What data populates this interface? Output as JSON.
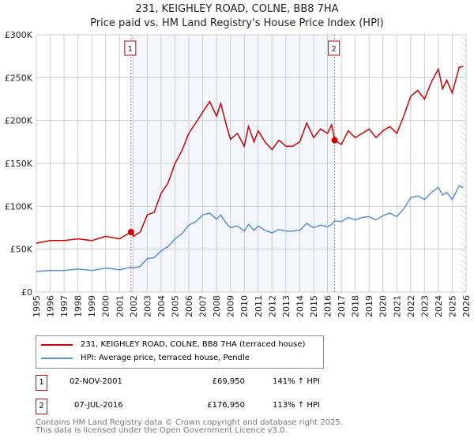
{
  "title": "231, KEIGHLEY ROAD, COLNE, BB8 7HA",
  "subtitle": "Price paid vs. HM Land Registry's House Price Index (HPI)",
  "chart_data": {
    "type": "line",
    "title": "231, KEIGHLEY ROAD, COLNE, BB8 7HA — Price paid vs. HM Land Registry's House Price Index (HPI)",
    "xlim": [
      1995,
      2026
    ],
    "ylim": [
      0,
      300000
    ],
    "x_ticks": [
      "1995",
      "1996",
      "1997",
      "1998",
      "1999",
      "2000",
      "2001",
      "2002",
      "2003",
      "2004",
      "2005",
      "2006",
      "2007",
      "2008",
      "2009",
      "2010",
      "2011",
      "2012",
      "2013",
      "2014",
      "2015",
      "2016",
      "2017",
      "2018",
      "2019",
      "2020",
      "2021",
      "2022",
      "2023",
      "2024",
      "2025",
      "2026"
    ],
    "y_ticks": [
      {
        "v": 0,
        "label": "£0"
      },
      {
        "v": 50000,
        "label": "£50K"
      },
      {
        "v": 100000,
        "label": "£100K"
      },
      {
        "v": 150000,
        "label": "£150K"
      },
      {
        "v": 200000,
        "label": "£200K"
      },
      {
        "v": 250000,
        "label": "£250K"
      },
      {
        "v": 300000,
        "label": "£300K"
      }
    ],
    "grid": true,
    "shaded_range": [
      2001.83,
      2016.52
    ],
    "forecast_hatch_from": 2025.6,
    "x": [
      1995,
      1996,
      1997,
      1998,
      1999,
      2000,
      2001,
      2001.83,
      2002,
      2002.5,
      2003,
      2003.5,
      2004,
      2004.5,
      2005,
      2005.5,
      2006,
      2006.5,
      2007,
      2007.5,
      2008,
      2008.3,
      2008.7,
      2009,
      2009.5,
      2010,
      2010.3,
      2010.7,
      2011,
      2011.5,
      2012,
      2012.5,
      2013,
      2013.5,
      2014,
      2014.5,
      2015,
      2015.5,
      2016,
      2016.3,
      2016.52,
      2017,
      2017.5,
      2018,
      2018.5,
      2019,
      2019.5,
      2020,
      2020.5,
      2021,
      2021.5,
      2022,
      2022.5,
      2023,
      2023.5,
      2024,
      2024.3,
      2024.6,
      2025,
      2025.5,
      2025.8
    ],
    "series": [
      {
        "name": "231, KEIGHLEY ROAD, COLNE, BB8 7HA (terraced house)",
        "color": "#cc0000",
        "values": [
          57000,
          60000,
          60000,
          62000,
          60000,
          65000,
          62000,
          70000,
          65000,
          70000,
          90000,
          93000,
          115000,
          127000,
          150000,
          165000,
          185000,
          197000,
          210000,
          222000,
          205000,
          220000,
          195000,
          178000,
          185000,
          170000,
          193000,
          175000,
          188000,
          175000,
          166000,
          177000,
          170000,
          170000,
          175000,
          197000,
          180000,
          190000,
          185000,
          195000,
          177000,
          172000,
          188000,
          180000,
          185000,
          190000,
          180000,
          188000,
          193000,
          185000,
          205000,
          228000,
          235000,
          225000,
          245000,
          260000,
          237000,
          247000,
          232000,
          262000,
          263000
        ]
      },
      {
        "name": "HPI: Average price, terraced house, Pendle",
        "color": "#5b8fd4",
        "values": [
          24000,
          25000,
          25000,
          27000,
          25000,
          28000,
          26000,
          29000,
          28000,
          30000,
          39000,
          40000,
          48000,
          53000,
          62000,
          68000,
          78000,
          82000,
          90000,
          92000,
          85000,
          90000,
          80000,
          75000,
          77000,
          71000,
          79000,
          72000,
          77000,
          72000,
          69000,
          73000,
          71000,
          71000,
          72000,
          80000,
          75000,
          78000,
          76000,
          79000,
          83000,
          82000,
          87000,
          84000,
          87000,
          88000,
          84000,
          89000,
          92000,
          88000,
          97000,
          110000,
          112000,
          108000,
          116000,
          122000,
          113000,
          116000,
          108000,
          124000,
          122000
        ]
      }
    ],
    "sales": [
      {
        "label": "1",
        "x": 2001.83,
        "value": 69950
      },
      {
        "label": "2",
        "x": 2016.52,
        "value": 176950
      }
    ]
  },
  "legend": {
    "items": [
      {
        "label": "231, KEIGHLEY ROAD, COLNE, BB8 7HA (terraced house)",
        "color": "#cc0000"
      },
      {
        "label": "HPI: Average price, terraced house, Pendle",
        "color": "#5b8fd4"
      }
    ]
  },
  "transactions": [
    {
      "num": "1",
      "date": "02-NOV-2001",
      "price": "£69,950",
      "hpi": "141% ↑ HPI"
    },
    {
      "num": "2",
      "date": "07-JUL-2016",
      "price": "£176,950",
      "hpi": "113% ↑ HPI"
    }
  ],
  "footer": {
    "line1": "Contains HM Land Registry data © Crown copyright and database right 2025.",
    "line2": "This data is licensed under the Open Government Licence v3.0."
  }
}
